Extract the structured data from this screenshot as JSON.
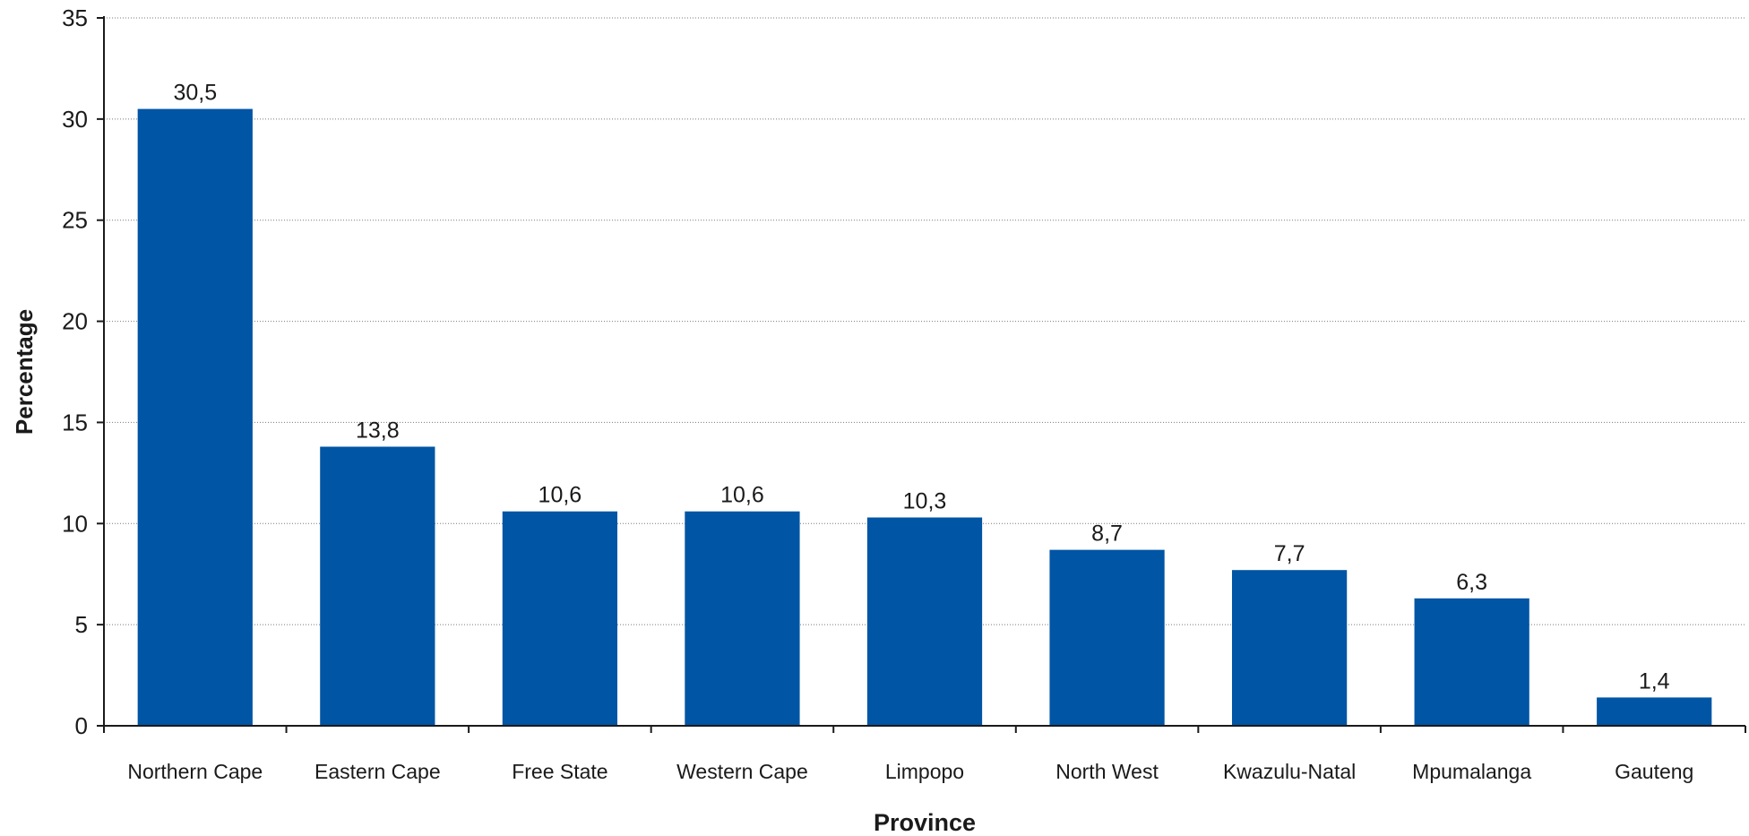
{
  "chart_data": {
    "type": "bar",
    "title": "",
    "xlabel": "Province",
    "ylabel": "Percentage",
    "categories": [
      "Northern Cape",
      "Eastern Cape",
      "Free State",
      "Western Cape",
      "Limpopo",
      "North West",
      "Kwazulu-Natal",
      "Mpumalanga",
      "Gauteng"
    ],
    "values": [
      30.5,
      13.8,
      10.6,
      10.6,
      10.3,
      8.7,
      7.7,
      6.3,
      1.4
    ],
    "value_labels": [
      "30,5",
      "13,8",
      "10,6",
      "10,6",
      "10,3",
      "8,7",
      "7,7",
      "6,3",
      "1,4"
    ],
    "ylim": [
      0,
      35
    ],
    "yticks": [
      0,
      5,
      10,
      15,
      20,
      25,
      30,
      35
    ],
    "grid": true,
    "legend": "none",
    "bar_color": "#0055a5"
  }
}
